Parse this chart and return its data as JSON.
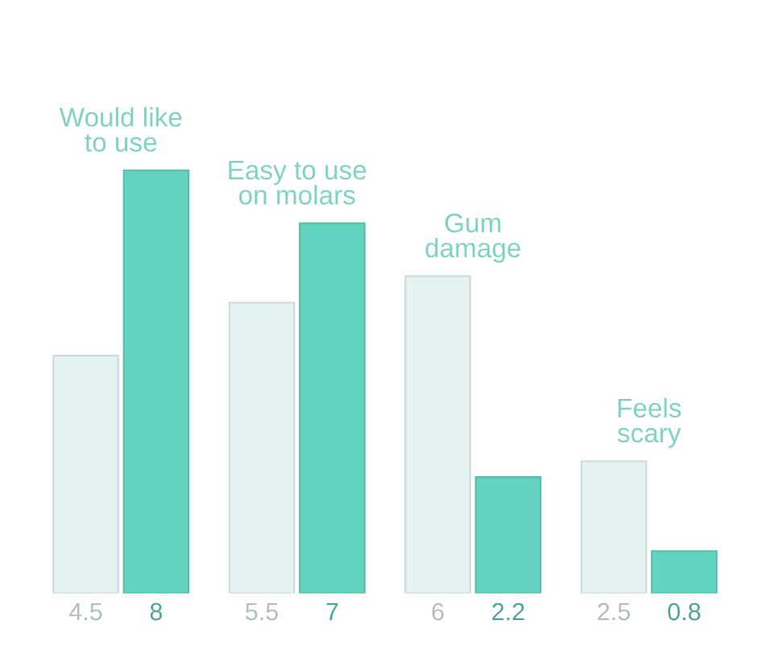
{
  "chart_data": {
    "type": "bar",
    "categories": [
      "Would like\nto use",
      "Easy to use\non molars",
      "Gum\ndamage",
      "Feels\nscary"
    ],
    "series": [
      {
        "color": "#e4f3f2",
        "values": [
          4.5,
          5.5,
          6,
          2.5
        ]
      },
      {
        "color": "#63d3c0",
        "values": [
          8,
          7,
          2.2,
          0.8
        ]
      }
    ],
    "data_labels": true
  }
}
